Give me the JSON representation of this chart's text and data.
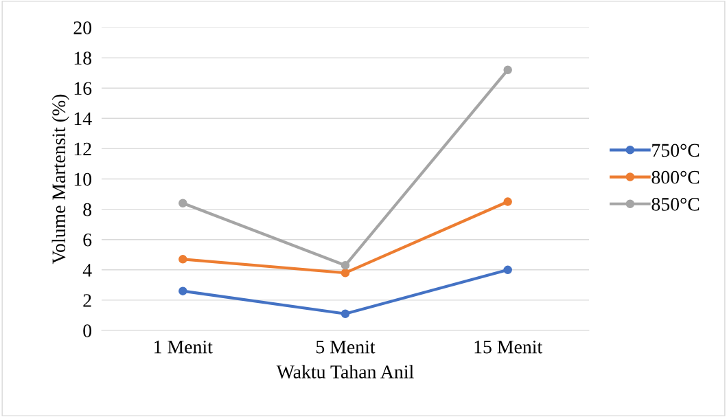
{
  "chart_data": {
    "type": "line",
    "xlabel": "Waktu Tahan Anil",
    "ylabel": "Volume Martensit (%)",
    "categories": [
      "1 Menit",
      "5 Menit",
      "15 Menit"
    ],
    "series": [
      {
        "name": "750°C",
        "color": "#4472c4",
        "values": [
          2.6,
          1.1,
          4.0
        ]
      },
      {
        "name": "800°C",
        "color": "#ed7d31",
        "values": [
          4.7,
          3.8,
          8.5
        ]
      },
      {
        "name": "850°C",
        "color": "#a5a5a5",
        "values": [
          8.4,
          4.3,
          17.2
        ]
      }
    ],
    "ylim": [
      0,
      20
    ],
    "yticks": [
      0,
      2,
      4,
      6,
      8,
      10,
      12,
      14,
      16,
      18,
      20
    ],
    "grid": "y",
    "legend": "right",
    "marker": "circle",
    "line_style": "solid"
  }
}
